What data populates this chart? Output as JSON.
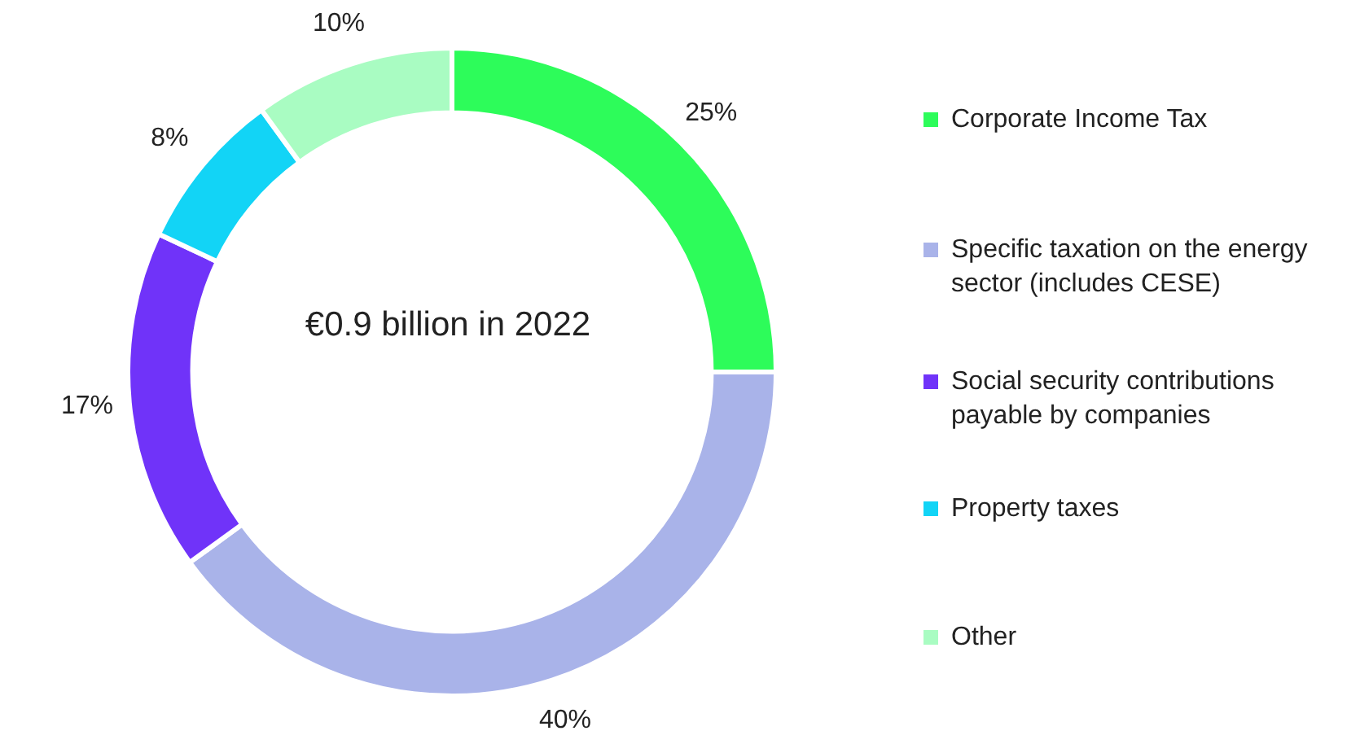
{
  "chart_data": {
    "type": "donut",
    "categories": [
      "Corporate Income Tax",
      "Specific taxation on the energy sector (includes CESE)",
      "Social security contributions payable by companies",
      "Property taxes",
      "Other"
    ],
    "values": [
      25,
      40,
      17,
      8,
      10
    ],
    "colors": [
      "#2dfc5a",
      "#a9b3e9",
      "#7033f9",
      "#12d4f6",
      "#a9fcc2"
    ],
    "value_labels": [
      "25%",
      "40%",
      "17%",
      "8%",
      "10%"
    ],
    "annotations": [
      "€0.9 billion in 2022"
    ],
    "legend": "right"
  }
}
